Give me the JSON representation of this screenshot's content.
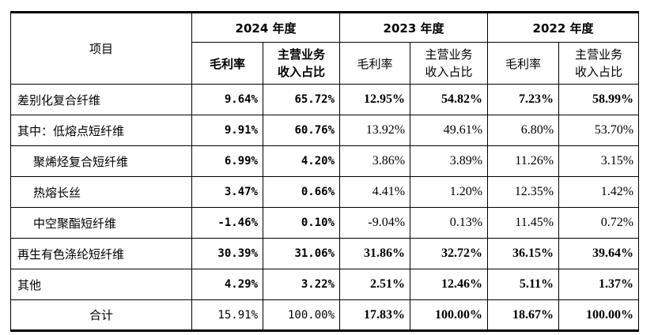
{
  "table": {
    "item_header": "项目",
    "year_headers": [
      "2024 年度",
      "2023 年度",
      "2022 年度"
    ],
    "sub_headers": {
      "gross_margin": "毛利率",
      "revenue_share": "主营业务收入占比"
    },
    "rows": [
      {
        "name": "差别化复合纤维",
        "indent": 0,
        "bold": true,
        "values": [
          "9.64%",
          "65.72%",
          "12.95%",
          "54.82%",
          "7.23%",
          "58.99%"
        ]
      },
      {
        "name": "其中：低熔点短纤维",
        "indent": 0,
        "bold": true,
        "values": [
          "9.91%",
          "60.76%",
          "13.92%",
          "49.61%",
          "6.80%",
          "53.70%"
        ]
      },
      {
        "name": "聚烯烃复合短纤维",
        "indent": 1,
        "bold": true,
        "values": [
          "6.99%",
          "4.20%",
          "3.86%",
          "3.89%",
          "11.26%",
          "3.15%"
        ]
      },
      {
        "name": "热熔长丝",
        "indent": 1,
        "bold": true,
        "values": [
          "3.47%",
          "0.66%",
          "4.41%",
          "1.20%",
          "12.35%",
          "1.42%"
        ]
      },
      {
        "name": "中空聚酯短纤维",
        "indent": 1,
        "bold": true,
        "values": [
          "-1.46%",
          "0.10%",
          "-9.04%",
          "0.13%",
          "11.45%",
          "0.72%"
        ]
      },
      {
        "name": "再生有色涤纶短纤维",
        "indent": 0,
        "bold": true,
        "values": [
          "30.39%",
          "31.06%",
          "31.86%",
          "32.72%",
          "36.15%",
          "39.64%"
        ]
      },
      {
        "name": "其他",
        "indent": 0,
        "bold": true,
        "values": [
          "4.29%",
          "3.22%",
          "2.51%",
          "12.46%",
          "5.11%",
          "1.37%"
        ]
      },
      {
        "name": "合计",
        "indent": 0,
        "bold": false,
        "center": true,
        "values": [
          "15.91%",
          "100.00%",
          "17.83%",
          "100.00%",
          "18.67%",
          "100.00%"
        ]
      }
    ]
  }
}
